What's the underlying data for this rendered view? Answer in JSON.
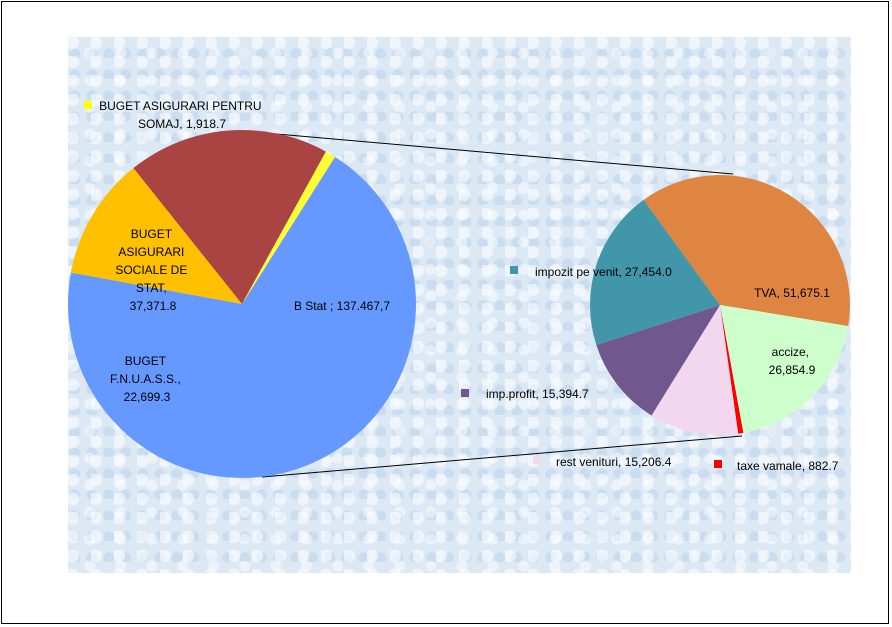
{
  "chart_data": [
    {
      "type": "pie",
      "slices": [
        {
          "label": "B Stat ; 137.467,7",
          "value": 137467.7,
          "color": "#6699ff"
        },
        {
          "label": "BUGET F.N.U.A.S.S., 22,699.3",
          "value": 22699.3,
          "color": "#ffc000"
        },
        {
          "label": "BUGET ASIGURARI SOCIALE DE STAT, 37,371.8",
          "value": 37371.8,
          "color": "#a94442"
        },
        {
          "label": "BUGET ASIGURARI PENTRU SOMAJ, 1,918.7",
          "value": 1918.7,
          "color": "#ffff33"
        }
      ]
    },
    {
      "type": "pie",
      "slices": [
        {
          "label": "TVA, 51,675.1",
          "value": 51675.1,
          "color": "#de8542"
        },
        {
          "label": "accize, 26,854.9",
          "value": 26854.9,
          "color": "#ccffcc"
        },
        {
          "label": "taxe vamale, 882.7",
          "value": 882.7,
          "color": "#ff0000"
        },
        {
          "label": "rest venituri, 15,206.4",
          "value": 15206.4,
          "color": "#f2d7ee"
        },
        {
          "label": "imp.profit, 15,394.7",
          "value": 15394.7,
          "color": "#70588f"
        },
        {
          "label": "impozit pe venit, 27,454.0",
          "value": 27454.0,
          "color": "#4296aa"
        }
      ]
    }
  ],
  "labels": {
    "b_stat": "B Stat ; 137.467,7",
    "somaj": [
      "BUGET ASIGURARI PENTRU",
      "SOMAJ, 1,918.7"
    ],
    "asig_soc": [
      "BUGET",
      "ASIGURARI",
      "SOCIALE DE",
      "STAT,",
      "37,371.8"
    ],
    "fnuass": [
      "BUGET",
      "F.N.U.A.S.S.,",
      "22,699.3"
    ],
    "tva": "TVA, 51,675.1",
    "accize": [
      "accize,",
      "26,854.9"
    ],
    "impozit_venit": "impozit pe venit, 27,454.0",
    "imp_profit": "imp.profit, 15,394.7",
    "rest_venituri": "rest venituri, 15,206.4",
    "taxe_vamale": "taxe vamale, 882.7"
  }
}
